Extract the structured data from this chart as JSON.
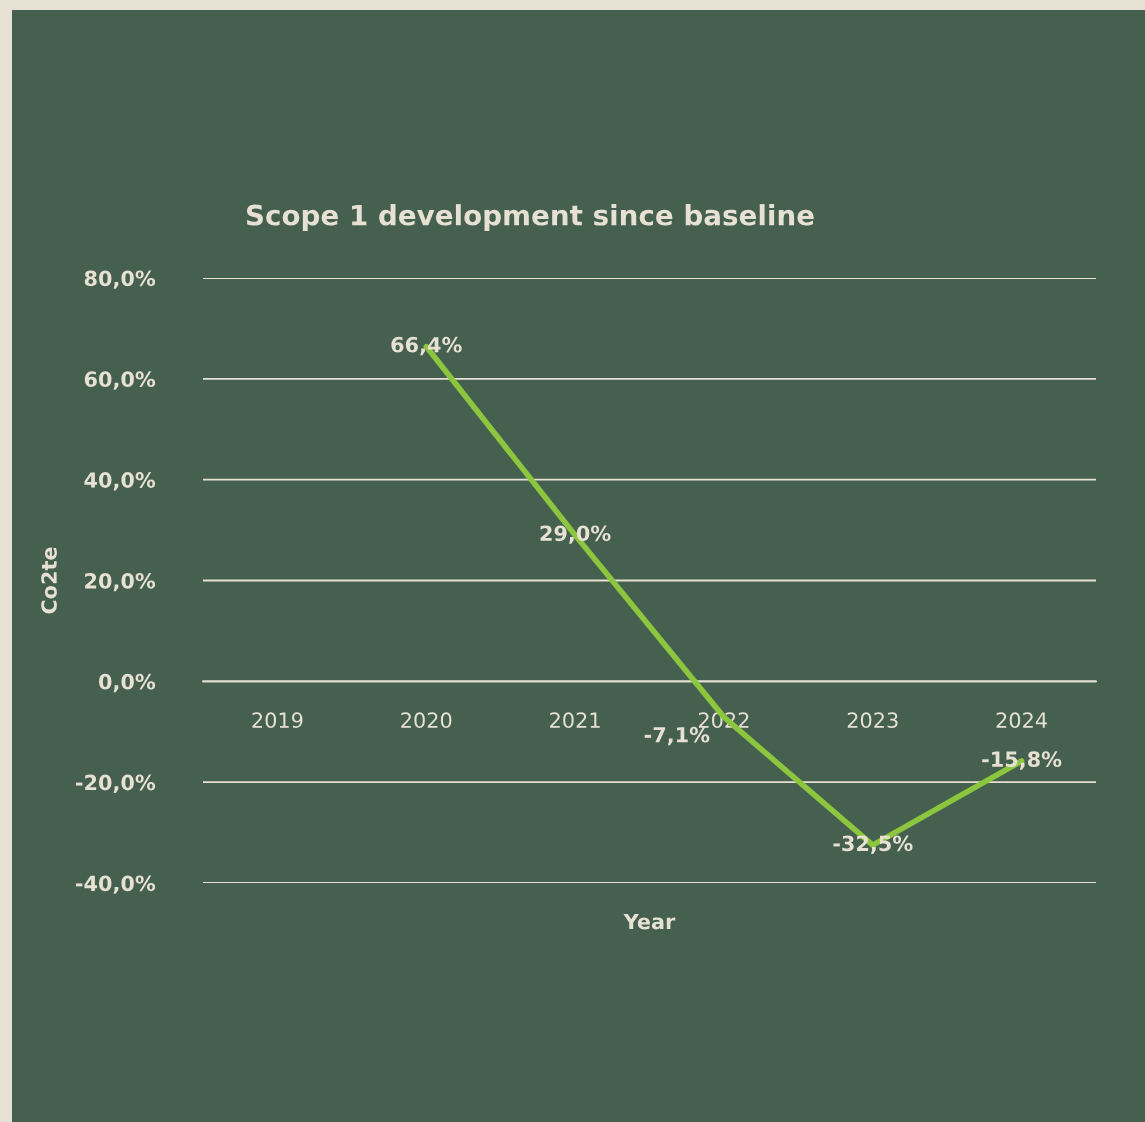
{
  "chart_data": {
    "type": "line",
    "title": "Scope 1 development since baseline",
    "xlabel": "Year",
    "ylabel": "Co2te",
    "categories": [
      "2019",
      "2020",
      "2021",
      "2022",
      "2023",
      "2024"
    ],
    "series": [
      {
        "color": "#8cc63e",
        "values": [
          null,
          66.4,
          29.0,
          -7.1,
          -32.5,
          -15.8
        ],
        "value_labels": [
          null,
          "66,4%",
          "29,0%",
          "-7,1%",
          "-32,5%",
          "-15,8%"
        ]
      }
    ],
    "ylim": [
      -40,
      80
    ],
    "yticks": [
      {
        "value": -40,
        "label": "-40,0%"
      },
      {
        "value": -20,
        "label": "-20,0%"
      },
      {
        "value": 0,
        "label": "0,0%"
      },
      {
        "value": 20,
        "label": "20,0%"
      },
      {
        "value": 40,
        "label": "40,0%"
      },
      {
        "value": 60,
        "label": "60,0%"
      },
      {
        "value": 80,
        "label": "80,0%"
      }
    ],
    "grid": "y",
    "legend": false,
    "marker": "none",
    "line_style": "solid"
  }
}
